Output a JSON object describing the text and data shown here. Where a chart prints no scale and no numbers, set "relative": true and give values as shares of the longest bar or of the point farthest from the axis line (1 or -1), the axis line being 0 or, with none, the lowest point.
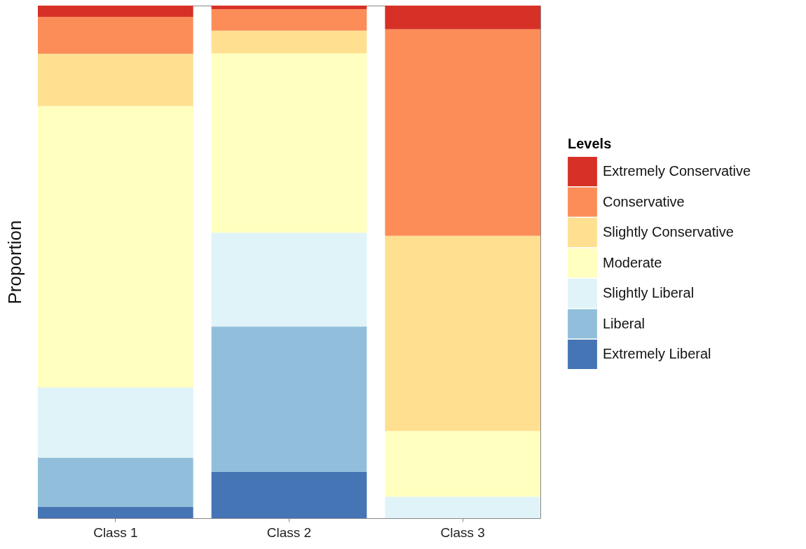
{
  "chart_data": {
    "type": "bar",
    "stacked": true,
    "relative": true,
    "ylabel": "Proportion",
    "legend_title": "Levels",
    "legend": "right",
    "categories": [
      "Class 1",
      "Class 2",
      "Class 3"
    ],
    "series": [
      {
        "name": "Extremely Liberal",
        "color": "#4575b4",
        "values": [
          0.022,
          0.09,
          0
        ]
      },
      {
        "name": "Liberal",
        "color": "#91bfdb",
        "values": [
          0.096,
          0.284,
          0
        ]
      },
      {
        "name": "Slightly Liberal",
        "color": "#e0f3f8",
        "values": [
          0.137,
          0.183,
          0.042
        ]
      },
      {
        "name": "Moderate",
        "color": "#ffffbf",
        "values": [
          0.549,
          0.35,
          0.128
        ]
      },
      {
        "name": "Slightly Conservative",
        "color": "#fee090",
        "values": [
          0.102,
          0.044,
          0.381
        ]
      },
      {
        "name": "Conservative",
        "color": "#fc8d59",
        "values": [
          0.072,
          0.042,
          0.403
        ]
      },
      {
        "name": "Extremely Conservative",
        "color": "#d73027",
        "values": [
          0.022,
          0.007,
          0.046
        ]
      }
    ]
  }
}
